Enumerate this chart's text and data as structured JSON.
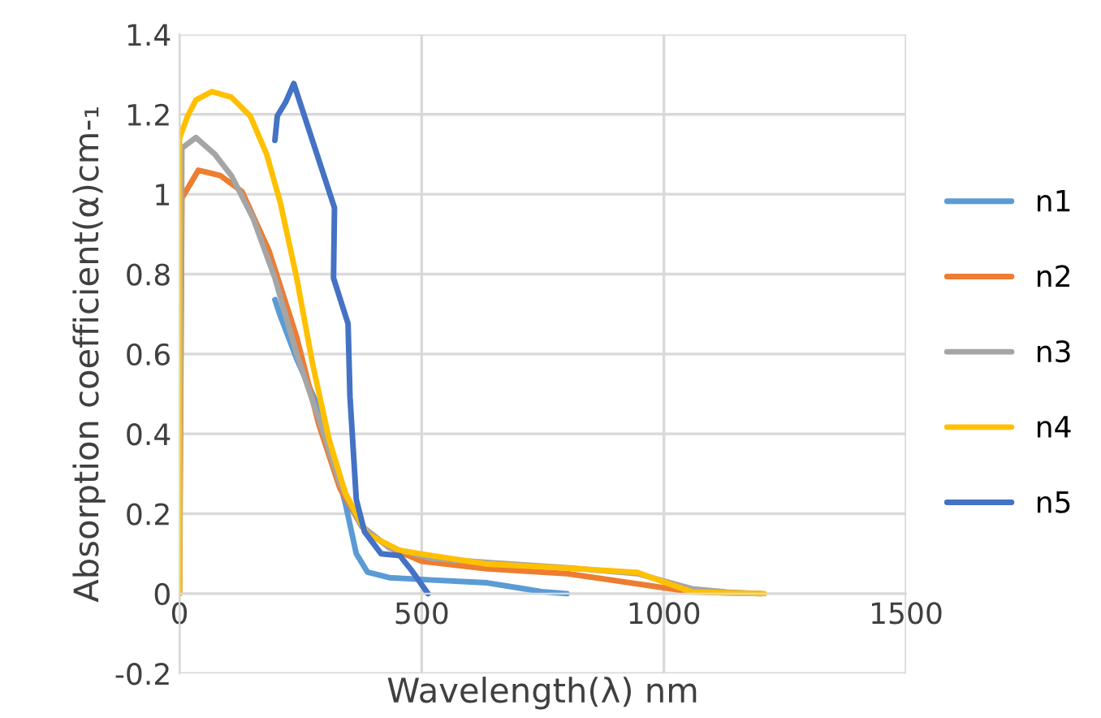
{
  "chart_data": {
    "type": "line",
    "xlabel": "Wavelength(λ) nm",
    "ylabel": "Absorption coefficient(α)cm-₁",
    "xlim": [
      0,
      1500
    ],
    "xticks": [
      0,
      500,
      1000,
      1500
    ],
    "ylim": [
      -0.2,
      1.4
    ],
    "yticks": [
      -0.2,
      0,
      0.2,
      0.4,
      0.6,
      0.8,
      1,
      1.2,
      1.4
    ],
    "grid": true,
    "legend": "right",
    "marker": "none",
    "line_style": "solid",
    "series": [
      {
        "name": "n1",
        "color": "#5b9bd5",
        "x": [
          197,
          208,
          242,
          287,
          320,
          343,
          365,
          388,
          433,
          522,
          635,
          702,
          747,
          800
        ],
        "values": [
          0.736,
          0.696,
          0.588,
          0.466,
          0.33,
          0.223,
          0.1,
          0.054,
          0.04,
          0.034,
          0.027,
          0.014,
          0.005,
          0
        ]
      },
      {
        "name": "n2",
        "color": "#ed7d31",
        "x": [
          0,
          5,
          39,
          84,
          129,
          185,
          242,
          287,
          331,
          376,
          433,
          500,
          635,
          800,
          970,
          1047,
          1120,
          1200
        ],
        "values": [
          0,
          0.99,
          1.06,
          1.047,
          1.007,
          0.858,
          0.642,
          0.426,
          0.264,
          0.169,
          0.115,
          0.081,
          0.062,
          0.05,
          0.02,
          0.006,
          0.002,
          0
        ]
      },
      {
        "name": "n3",
        "color": "#a5a5a5",
        "x": [
          0,
          5,
          34,
          73,
          107,
          152,
          197,
          242,
          287,
          331,
          376,
          433,
          522,
          635,
          800,
          945,
          1058,
          1130,
          1200
        ],
        "values": [
          0,
          1.115,
          1.142,
          1.1,
          1.047,
          0.94,
          0.79,
          0.6,
          0.44,
          0.277,
          0.169,
          0.115,
          0.088,
          0.078,
          0.065,
          0.05,
          0.012,
          0.004,
          0
        ]
      },
      {
        "name": "n4",
        "color": "#ffc000",
        "x": [
          0,
          0,
          17,
          34,
          67,
          107,
          146,
          180,
          208,
          242,
          275,
          309,
          343,
          388,
          455,
          522,
          635,
          800,
          945,
          1058,
          1130,
          1207
        ],
        "values": [
          0,
          1.14,
          1.196,
          1.236,
          1.257,
          1.243,
          1.196,
          1.1,
          0.98,
          0.79,
          0.574,
          0.385,
          0.25,
          0.149,
          0.108,
          0.095,
          0.074,
          0.064,
          0.053,
          0.004,
          0.002,
          0
        ]
      },
      {
        "name": "n5",
        "color": "#4472c4",
        "x": [
          197,
          202,
          219,
          236,
          320,
          318,
          348,
          352,
          365,
          382,
          416,
          455,
          478,
          513
        ],
        "values": [
          1.135,
          1.196,
          1.23,
          1.277,
          0.966,
          0.79,
          0.676,
          0.493,
          0.236,
          0.155,
          0.1,
          0.095,
          0.06,
          0
        ]
      }
    ]
  }
}
